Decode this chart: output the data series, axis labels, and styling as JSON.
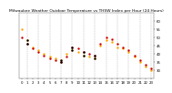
{
  "title": "Milwaukee Weather Outdoor Temperature vs THSW Index per Hour (24 Hours)",
  "hours": [
    0,
    1,
    2,
    3,
    4,
    5,
    6,
    7,
    8,
    9,
    10,
    11,
    12,
    13,
    14,
    15,
    16,
    17,
    18,
    19,
    20,
    21,
    22,
    23
  ],
  "temp": [
    55,
    48,
    44,
    42,
    40,
    38,
    37,
    36,
    40,
    42,
    41,
    39,
    38,
    37,
    45,
    48,
    47,
    44,
    43,
    41,
    38,
    35,
    32,
    30
  ],
  "thsw": [
    50,
    46,
    43,
    41,
    39,
    37,
    36,
    35,
    38,
    44,
    43,
    41,
    40,
    39,
    46,
    50,
    49,
    46,
    44,
    42,
    39,
    36,
    33,
    31
  ],
  "temp_color": "#FFA500",
  "thsw_color": "#CC0000",
  "black_dots_temp": [
    1,
    7,
    9,
    11,
    13
  ],
  "black_dots_thsw": [
    1,
    7,
    9,
    11,
    13
  ],
  "bg_color": "#ffffff",
  "grid_color": "#aaaaaa",
  "title_color": "#000000",
  "ylim": [
    25,
    65
  ],
  "xlim": [
    -0.5,
    23.5
  ],
  "yticks": [
    30,
    35,
    40,
    45,
    50,
    55,
    60
  ],
  "ytick_labels": [
    "30",
    "35",
    "40",
    "45",
    "50",
    "55",
    "60"
  ],
  "grid_hours": [
    1,
    3,
    5,
    7,
    9,
    11,
    13,
    15,
    17,
    19,
    21,
    23
  ],
  "marker_size": 3.0,
  "title_fontsize": 3.2,
  "tick_fontsize": 2.8,
  "dpi": 100
}
